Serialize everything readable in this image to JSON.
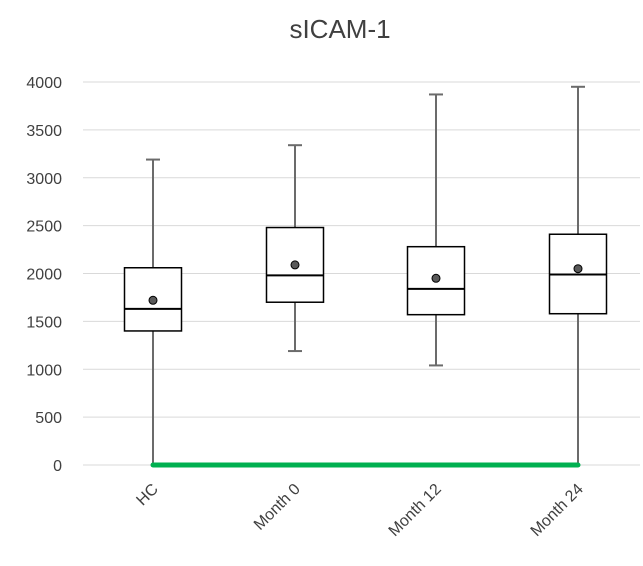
{
  "chart_data": {
    "type": "boxplot",
    "title": "sICAM-1",
    "xlabel": "",
    "ylabel": "",
    "ylim": [
      0,
      4000
    ],
    "yticks": [
      0,
      500,
      1000,
      1500,
      2000,
      2500,
      3000,
      3500,
      4000
    ],
    "grid": true,
    "legend": "none",
    "categories": [
      "HC",
      "Month 0",
      "Month 12",
      "Month 24"
    ],
    "boxes": [
      {
        "min": 0,
        "q1": 1400,
        "median": 1630,
        "q3": 2060,
        "max": 3190,
        "mean": 1720
      },
      {
        "min": 1190,
        "q1": 1700,
        "median": 1980,
        "q3": 2480,
        "max": 3340,
        "mean": 2090
      },
      {
        "min": 1040,
        "q1": 1570,
        "median": 1840,
        "q3": 2280,
        "max": 3870,
        "mean": 1950
      },
      {
        "min": 0,
        "q1": 1580,
        "median": 1990,
        "q3": 2410,
        "max": 3950,
        "mean": 2050
      }
    ],
    "baseline": {
      "value": 0,
      "color": "#00b050"
    }
  }
}
